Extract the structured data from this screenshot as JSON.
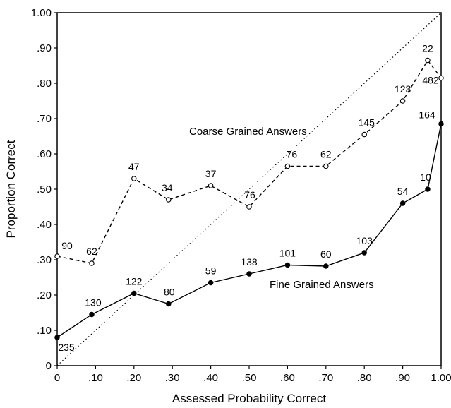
{
  "chart_data": {
    "type": "line",
    "title": "",
    "xlabel": "Assessed Probability Correct",
    "ylabel": "Proportion Correct",
    "xlim": [
      0,
      1
    ],
    "ylim": [
      0,
      1
    ],
    "grid": false,
    "legend": "none",
    "x_tick_labels": [
      "0",
      ".10",
      ".20",
      ".30",
      ".40",
      ".50",
      ".60",
      ".70",
      ".80",
      ".90",
      "1.00"
    ],
    "x_ticks": [
      0,
      0.1,
      0.2,
      0.3,
      0.4,
      0.5,
      0.6,
      0.7,
      0.8,
      0.9,
      1.0
    ],
    "y_tick_labels": [
      "0",
      ".10",
      ".20",
      ".30",
      ".40",
      ".50",
      ".60",
      ".70",
      ".80",
      ".90",
      "1.00"
    ],
    "y_ticks": [
      0,
      0.1,
      0.2,
      0.3,
      0.4,
      0.5,
      0.6,
      0.7,
      0.8,
      0.9,
      1.0
    ],
    "reference_line": {
      "style": "dotted",
      "from": [
        0,
        0
      ],
      "to": [
        1,
        1
      ]
    },
    "series": [
      {
        "name": "Coarse Grained Answers",
        "style": "dashed",
        "marker": "open-circle",
        "points": [
          {
            "x": 0.0,
            "y": 0.31,
            "n": "90"
          },
          {
            "x": 0.09,
            "y": 0.29,
            "n": "62"
          },
          {
            "x": 0.2,
            "y": 0.53,
            "n": "47"
          },
          {
            "x": 0.29,
            "y": 0.47,
            "n": "34"
          },
          {
            "x": 0.4,
            "y": 0.51,
            "n": "37"
          },
          {
            "x": 0.5,
            "y": 0.45,
            "n": "76"
          },
          {
            "x": 0.6,
            "y": 0.565,
            "n": "76"
          },
          {
            "x": 0.7,
            "y": 0.565,
            "n": "62"
          },
          {
            "x": 0.8,
            "y": 0.655,
            "n": "145"
          },
          {
            "x": 0.9,
            "y": 0.75,
            "n": "123"
          },
          {
            "x": 0.965,
            "y": 0.865,
            "n": "22"
          },
          {
            "x": 1.0,
            "y": 0.815,
            "n": "482"
          }
        ]
      },
      {
        "name": "Fine Grained Answers",
        "style": "solid",
        "marker": "filled-circle",
        "points": [
          {
            "x": 0.0,
            "y": 0.08,
            "n": "235"
          },
          {
            "x": 0.09,
            "y": 0.145,
            "n": "130"
          },
          {
            "x": 0.2,
            "y": 0.205,
            "n": "122"
          },
          {
            "x": 0.29,
            "y": 0.175,
            "n": "80"
          },
          {
            "x": 0.4,
            "y": 0.235,
            "n": "59"
          },
          {
            "x": 0.5,
            "y": 0.26,
            "n": "138"
          },
          {
            "x": 0.6,
            "y": 0.285,
            "n": "101"
          },
          {
            "x": 0.7,
            "y": 0.282,
            "n": "60"
          },
          {
            "x": 0.8,
            "y": 0.32,
            "n": "103"
          },
          {
            "x": 0.9,
            "y": 0.46,
            "n": "54"
          },
          {
            "x": 0.965,
            "y": 0.5,
            "n": "10"
          },
          {
            "x": 1.0,
            "y": 0.685,
            "n": "164"
          }
        ]
      }
    ]
  }
}
